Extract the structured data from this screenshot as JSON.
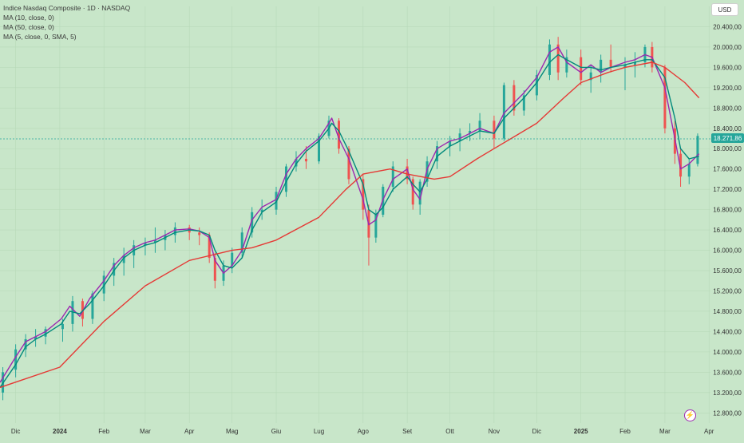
{
  "legend": {
    "title": "Indice Nasdaq Composite · 1D · NASDAQ",
    "ma10": "MA (10, close, 0)",
    "ma50": "MA (50, close, 0)",
    "sma5": "MA (5, close, 0, SMA, 5)"
  },
  "currency_label": "USD",
  "last_price_label": "18.271,86",
  "lightning_icon": "lightning-icon",
  "colors": {
    "background": "#c8e6c9",
    "grid": "#b7d9b9",
    "up": "#26a69a",
    "down": "#ef5350",
    "ma10": "#00897b",
    "ma50": "#e53935",
    "sma5": "#9c27b0"
  },
  "chart_data": {
    "type": "line",
    "title": "Indice Nasdaq Composite · 1D · NASDAQ",
    "xlabel": "",
    "ylabel": "",
    "x_tick_labels": [
      "Dic",
      "2024",
      "Feb",
      "Mar",
      "Apr",
      "Mag",
      "Giu",
      "Lug",
      "Ago",
      "Set",
      "Ott",
      "Nov",
      "Dic",
      "2025",
      "Feb",
      "Mar",
      "Apr"
    ],
    "y_tick_labels": [
      "20.400,00",
      "20.000,00",
      "19.600,00",
      "19.200,00",
      "18.800,00",
      "18.400,00",
      "18.000,00",
      "17.600,00",
      "17.200,00",
      "16.800,00",
      "16.400,00",
      "16.000,00",
      "15.600,00",
      "15.200,00",
      "14.800,00",
      "14.400,00",
      "14.000,00",
      "13.600,00",
      "13.200,00",
      "12.800,00"
    ],
    "ylim": [
      12600,
      20800
    ],
    "last_price": 18271.86,
    "series": [
      {
        "name": "MA (5, close, 0, SMA, 5)",
        "x": [
          "2023-11-20",
          "2023-12-01",
          "2023-12-08",
          "2023-12-15",
          "2023-12-22",
          "2024-01-02",
          "2024-01-08",
          "2024-01-15",
          "2024-01-22",
          "2024-02-01",
          "2024-02-08",
          "2024-02-15",
          "2024-02-22",
          "2024-03-01",
          "2024-03-08",
          "2024-03-15",
          "2024-03-22",
          "2024-04-01",
          "2024-04-08",
          "2024-04-15",
          "2024-04-19",
          "2024-04-25",
          "2024-05-01",
          "2024-05-08",
          "2024-05-15",
          "2024-05-22",
          "2024-06-01",
          "2024-06-08",
          "2024-06-15",
          "2024-06-22",
          "2024-07-01",
          "2024-07-08",
          "2024-07-10",
          "2024-07-15",
          "2024-07-22",
          "2024-08-01",
          "2024-08-05",
          "2024-08-10",
          "2024-08-15",
          "2024-08-22",
          "2024-09-01",
          "2024-09-05",
          "2024-09-10",
          "2024-09-15",
          "2024-09-22",
          "2024-10-01",
          "2024-10-08",
          "2024-10-15",
          "2024-10-22",
          "2024-11-01",
          "2024-11-08",
          "2024-11-15",
          "2024-11-22",
          "2024-12-01",
          "2024-12-10",
          "2024-12-16",
          "2024-12-22",
          "2025-01-01",
          "2025-01-08",
          "2025-01-15",
          "2025-01-22",
          "2025-02-01",
          "2025-02-08",
          "2025-02-15",
          "2025-02-20",
          "2025-03-01",
          "2025-03-08",
          "2025-03-12",
          "2025-03-18",
          "2025-03-25"
        ],
        "values": [
          13400,
          13900,
          14200,
          14300,
          14400,
          14650,
          14900,
          14700,
          15050,
          15400,
          15700,
          15900,
          16050,
          16150,
          16200,
          16300,
          16400,
          16420,
          16380,
          16250,
          15800,
          15550,
          15700,
          16000,
          16600,
          16850,
          17000,
          17500,
          17800,
          18000,
          18200,
          18500,
          18600,
          18200,
          17800,
          17000,
          16500,
          16600,
          17000,
          17400,
          17600,
          17200,
          17000,
          17600,
          18000,
          18150,
          18200,
          18300,
          18400,
          18300,
          18700,
          18900,
          19100,
          19400,
          19900,
          20000,
          19700,
          19500,
          19650,
          19500,
          19600,
          19700,
          19750,
          19850,
          19800,
          19200,
          18200,
          17600,
          17700,
          17900
        ]
      },
      {
        "name": "MA (10, close, 0)",
        "x": [
          "2023-11-20",
          "2023-12-01",
          "2023-12-08",
          "2023-12-15",
          "2023-12-22",
          "2024-01-02",
          "2024-01-08",
          "2024-01-15",
          "2024-01-22",
          "2024-02-01",
          "2024-02-08",
          "2024-02-15",
          "2024-02-22",
          "2024-03-01",
          "2024-03-08",
          "2024-03-15",
          "2024-03-22",
          "2024-04-01",
          "2024-04-08",
          "2024-04-15",
          "2024-04-19",
          "2024-04-25",
          "2024-05-01",
          "2024-05-08",
          "2024-05-15",
          "2024-05-22",
          "2024-06-01",
          "2024-06-08",
          "2024-06-15",
          "2024-06-22",
          "2024-07-01",
          "2024-07-08",
          "2024-07-10",
          "2024-07-15",
          "2024-07-22",
          "2024-08-01",
          "2024-08-05",
          "2024-08-10",
          "2024-08-15",
          "2024-08-22",
          "2024-09-01",
          "2024-09-05",
          "2024-09-10",
          "2024-09-15",
          "2024-09-22",
          "2024-10-01",
          "2024-10-08",
          "2024-10-15",
          "2024-10-22",
          "2024-11-01",
          "2024-11-08",
          "2024-11-15",
          "2024-11-22",
          "2024-12-01",
          "2024-12-10",
          "2024-12-16",
          "2024-12-22",
          "2025-01-01",
          "2025-01-08",
          "2025-01-15",
          "2025-01-22",
          "2025-02-01",
          "2025-02-08",
          "2025-02-15",
          "2025-02-20",
          "2025-03-01",
          "2025-03-08",
          "2025-03-12",
          "2025-03-18",
          "2025-03-25"
        ],
        "values": [
          13300,
          13750,
          14100,
          14250,
          14350,
          14550,
          14800,
          14750,
          14950,
          15300,
          15600,
          15850,
          16000,
          16100,
          16150,
          16250,
          16350,
          16400,
          16380,
          16300,
          16000,
          15700,
          15650,
          15850,
          16400,
          16750,
          16950,
          17350,
          17700,
          17950,
          18150,
          18400,
          18500,
          18350,
          17950,
          17300,
          16800,
          16700,
          16850,
          17200,
          17450,
          17300,
          17150,
          17400,
          17850,
          18050,
          18150,
          18250,
          18350,
          18300,
          18600,
          18800,
          19000,
          19300,
          19700,
          19850,
          19750,
          19600,
          19600,
          19550,
          19600,
          19650,
          19700,
          19750,
          19750,
          19400,
          18600,
          18000,
          17800,
          17850
        ]
      },
      {
        "name": "MA (50, close, 0)",
        "x": [
          "2023-11-20",
          "2024-01-01",
          "2024-02-01",
          "2024-03-01",
          "2024-04-01",
          "2024-05-01",
          "2024-05-15",
          "2024-06-01",
          "2024-07-01",
          "2024-07-20",
          "2024-08-01",
          "2024-08-20",
          "2024-09-01",
          "2024-09-20",
          "2024-10-01",
          "2024-10-20",
          "2024-11-01",
          "2024-12-01",
          "2024-12-20",
          "2025-01-01",
          "2025-01-20",
          "2025-02-01",
          "2025-02-20",
          "2025-03-01",
          "2025-03-15",
          "2025-03-25"
        ],
        "values": [
          13300,
          13700,
          14600,
          15300,
          15800,
          16000,
          16050,
          16200,
          16650,
          17200,
          17500,
          17600,
          17500,
          17400,
          17450,
          17800,
          18000,
          18500,
          19000,
          19300,
          19500,
          19600,
          19700,
          19600,
          19300,
          19000
        ]
      }
    ],
    "candles": [
      {
        "date": "2023-11-22",
        "o": 13200,
        "h": 13700,
        "l": 13050,
        "c": 13600
      },
      {
        "date": "2023-12-01",
        "o": 13650,
        "h": 14150,
        "l": 13500,
        "c": 14050
      },
      {
        "date": "2023-12-08",
        "o": 14050,
        "h": 14350,
        "l": 13900,
        "c": 14250
      },
      {
        "date": "2023-12-15",
        "o": 14250,
        "h": 14450,
        "l": 14100,
        "c": 14300
      },
      {
        "date": "2023-12-22",
        "o": 14300,
        "h": 14500,
        "l": 14150,
        "c": 14450
      },
      {
        "date": "2024-01-03",
        "o": 14450,
        "h": 14650,
        "l": 14200,
        "c": 14550
      },
      {
        "date": "2024-01-10",
        "o": 14550,
        "h": 15100,
        "l": 14400,
        "c": 15000
      },
      {
        "date": "2024-01-17",
        "o": 15000,
        "h": 15050,
        "l": 14500,
        "c": 14650
      },
      {
        "date": "2024-01-24",
        "o": 14650,
        "h": 15200,
        "l": 14550,
        "c": 15150
      },
      {
        "date": "2024-02-01",
        "o": 15150,
        "h": 15600,
        "l": 15000,
        "c": 15500
      },
      {
        "date": "2024-02-08",
        "o": 15500,
        "h": 15850,
        "l": 15300,
        "c": 15750
      },
      {
        "date": "2024-02-15",
        "o": 15750,
        "h": 16050,
        "l": 15500,
        "c": 15900
      },
      {
        "date": "2024-02-22",
        "o": 15900,
        "h": 16200,
        "l": 15650,
        "c": 16100
      },
      {
        "date": "2024-03-01",
        "o": 16100,
        "h": 16250,
        "l": 15900,
        "c": 16150
      },
      {
        "date": "2024-03-08",
        "o": 16150,
        "h": 16450,
        "l": 15950,
        "c": 16200
      },
      {
        "date": "2024-03-15",
        "o": 16200,
        "h": 16400,
        "l": 16000,
        "c": 16300
      },
      {
        "date": "2024-03-22",
        "o": 16300,
        "h": 16550,
        "l": 16150,
        "c": 16450
      },
      {
        "date": "2024-04-01",
        "o": 16450,
        "h": 16500,
        "l": 16200,
        "c": 16350
      },
      {
        "date": "2024-04-08",
        "o": 16350,
        "h": 16450,
        "l": 16100,
        "c": 16300
      },
      {
        "date": "2024-04-15",
        "o": 16300,
        "h": 16350,
        "l": 15750,
        "c": 15850
      },
      {
        "date": "2024-04-19",
        "o": 15850,
        "h": 15950,
        "l": 15250,
        "c": 15400
      },
      {
        "date": "2024-04-25",
        "o": 15400,
        "h": 15800,
        "l": 15300,
        "c": 15700
      },
      {
        "date": "2024-05-01",
        "o": 15700,
        "h": 16050,
        "l": 15550,
        "c": 15950
      },
      {
        "date": "2024-05-08",
        "o": 15950,
        "h": 16450,
        "l": 15850,
        "c": 16350
      },
      {
        "date": "2024-05-15",
        "o": 16350,
        "h": 16850,
        "l": 16250,
        "c": 16750
      },
      {
        "date": "2024-05-22",
        "o": 16750,
        "h": 17000,
        "l": 16600,
        "c": 16800
      },
      {
        "date": "2024-06-01",
        "o": 16800,
        "h": 17250,
        "l": 16700,
        "c": 17150
      },
      {
        "date": "2024-06-08",
        "o": 17150,
        "h": 17700,
        "l": 17050,
        "c": 17650
      },
      {
        "date": "2024-06-15",
        "o": 17650,
        "h": 17950,
        "l": 17550,
        "c": 17800
      },
      {
        "date": "2024-06-22",
        "o": 17800,
        "h": 18050,
        "l": 17600,
        "c": 17750
      },
      {
        "date": "2024-07-01",
        "o": 17750,
        "h": 18300,
        "l": 17700,
        "c": 18250
      },
      {
        "date": "2024-07-08",
        "o": 18250,
        "h": 18650,
        "l": 18200,
        "c": 18550
      },
      {
        "date": "2024-07-15",
        "o": 18550,
        "h": 18600,
        "l": 17900,
        "c": 18000
      },
      {
        "date": "2024-07-22",
        "o": 18000,
        "h": 18050,
        "l": 17300,
        "c": 17400
      },
      {
        "date": "2024-08-01",
        "o": 17400,
        "h": 17500,
        "l": 16600,
        "c": 16800
      },
      {
        "date": "2024-08-05",
        "o": 16800,
        "h": 16900,
        "l": 15700,
        "c": 16250
      },
      {
        "date": "2024-08-10",
        "o": 16250,
        "h": 16800,
        "l": 16150,
        "c": 16700
      },
      {
        "date": "2024-08-15",
        "o": 16700,
        "h": 17300,
        "l": 16650,
        "c": 17250
      },
      {
        "date": "2024-08-22",
        "o": 17250,
        "h": 17750,
        "l": 17150,
        "c": 17650
      },
      {
        "date": "2024-09-01",
        "o": 17650,
        "h": 17800,
        "l": 17300,
        "c": 17400
      },
      {
        "date": "2024-09-05",
        "o": 17400,
        "h": 17450,
        "l": 16800,
        "c": 16900
      },
      {
        "date": "2024-09-10",
        "o": 16900,
        "h": 17400,
        "l": 16700,
        "c": 17350
      },
      {
        "date": "2024-09-15",
        "o": 17350,
        "h": 17850,
        "l": 17250,
        "c": 17750
      },
      {
        "date": "2024-09-22",
        "o": 17750,
        "h": 18150,
        "l": 17600,
        "c": 18050
      },
      {
        "date": "2024-10-01",
        "o": 18050,
        "h": 18250,
        "l": 17850,
        "c": 18150
      },
      {
        "date": "2024-10-08",
        "o": 18150,
        "h": 18400,
        "l": 17950,
        "c": 18300
      },
      {
        "date": "2024-10-15",
        "o": 18300,
        "h": 18500,
        "l": 18150,
        "c": 18350
      },
      {
        "date": "2024-10-22",
        "o": 18350,
        "h": 18700,
        "l": 18200,
        "c": 18550
      },
      {
        "date": "2024-11-01",
        "o": 18550,
        "h": 18650,
        "l": 18000,
        "c": 18200
      },
      {
        "date": "2024-11-08",
        "o": 18200,
        "h": 19300,
        "l": 18150,
        "c": 19250
      },
      {
        "date": "2024-11-15",
        "o": 19250,
        "h": 19350,
        "l": 18650,
        "c": 18750
      },
      {
        "date": "2024-11-22",
        "o": 18750,
        "h": 19150,
        "l": 18650,
        "c": 19050
      },
      {
        "date": "2024-12-01",
        "o": 19050,
        "h": 19550,
        "l": 18950,
        "c": 19450
      },
      {
        "date": "2024-12-10",
        "o": 19450,
        "h": 20150,
        "l": 19350,
        "c": 20050
      },
      {
        "date": "2024-12-16",
        "o": 20050,
        "h": 20200,
        "l": 19350,
        "c": 19500
      },
      {
        "date": "2024-12-22",
        "o": 19500,
        "h": 19950,
        "l": 19400,
        "c": 19800
      },
      {
        "date": "2025-01-01",
        "o": 19800,
        "h": 19950,
        "l": 19250,
        "c": 19350
      },
      {
        "date": "2025-01-08",
        "o": 19350,
        "h": 19650,
        "l": 19100,
        "c": 19500
      },
      {
        "date": "2025-01-15",
        "o": 19500,
        "h": 19850,
        "l": 19300,
        "c": 19750
      },
      {
        "date": "2025-01-22",
        "o": 19750,
        "h": 20050,
        "l": 19500,
        "c": 19600
      },
      {
        "date": "2025-02-01",
        "o": 19600,
        "h": 19800,
        "l": 19150,
        "c": 19650
      },
      {
        "date": "2025-02-08",
        "o": 19650,
        "h": 19900,
        "l": 19400,
        "c": 19700
      },
      {
        "date": "2025-02-15",
        "o": 19700,
        "h": 20050,
        "l": 19600,
        "c": 20000
      },
      {
        "date": "2025-02-20",
        "o": 20000,
        "h": 20100,
        "l": 19500,
        "c": 19600
      },
      {
        "date": "2025-03-01",
        "o": 19600,
        "h": 19650,
        "l": 18300,
        "c": 18400
      },
      {
        "date": "2025-03-08",
        "o": 18400,
        "h": 18550,
        "l": 17700,
        "c": 17900
      },
      {
        "date": "2025-03-12",
        "o": 17900,
        "h": 18000,
        "l": 17250,
        "c": 17450
      },
      {
        "date": "2025-03-18",
        "o": 17450,
        "h": 17800,
        "l": 17300,
        "c": 17700
      },
      {
        "date": "2025-03-24",
        "o": 17700,
        "h": 18300,
        "l": 17650,
        "c": 18250
      }
    ]
  }
}
